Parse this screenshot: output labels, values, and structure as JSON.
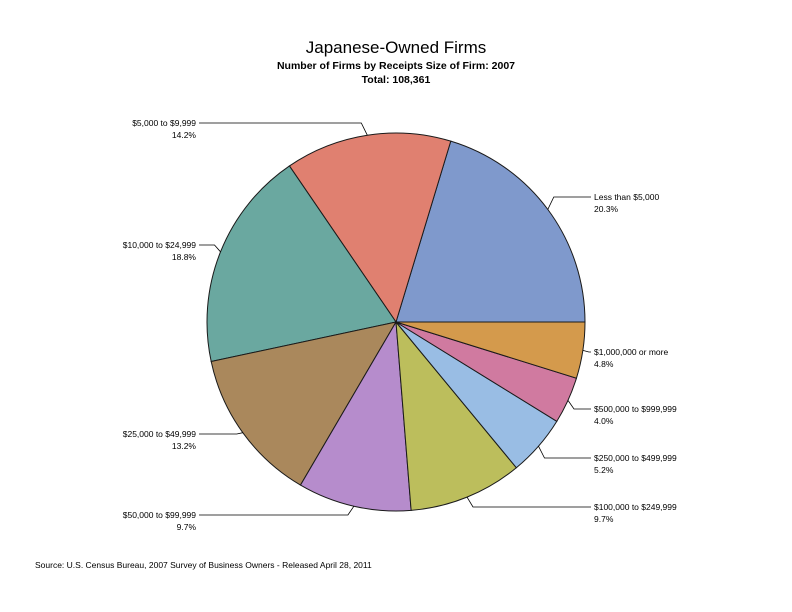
{
  "chart_data": {
    "type": "pie",
    "title": "Japanese-Owned Firms",
    "subtitle": "Number of Firms by Receipts Size of Firm: 2007",
    "total_label": "Total: 108,361",
    "source": "Source: U.S. Census Bureau, 2007 Survey of Business Owners - Released April 28, 2011",
    "slices": [
      {
        "label": "Less than $5,000",
        "pct_text": "20.3%",
        "value": 20.3,
        "color": "#7f99cc"
      },
      {
        "label": "$5,000 to $9,999",
        "pct_text": "14.2%",
        "value": 14.2,
        "color": "#e08070"
      },
      {
        "label": "$10,000 to $24,999",
        "pct_text": "18.8%",
        "value": 18.8,
        "color": "#6aa8a0"
      },
      {
        "label": "$25,000 to $49,999",
        "pct_text": "13.2%",
        "value": 13.2,
        "color": "#aa885c"
      },
      {
        "label": "$50,000 to $99,999",
        "pct_text": "9.7%",
        "value": 9.7,
        "color": "#b68ccc"
      },
      {
        "label": "$100,000 to $249,999",
        "pct_text": "9.7%",
        "value": 9.7,
        "color": "#bcbe5c"
      },
      {
        "label": "$250,000 to $499,999",
        "pct_text": "5.2%",
        "value": 5.2,
        "color": "#99bde4"
      },
      {
        "label": "$500,000 to $999,999",
        "pct_text": "4.0%",
        "value": 4.0,
        "color": "#d07aa0"
      },
      {
        "label": "$1,000,000 or more",
        "pct_text": "4.8%",
        "value": 4.8,
        "color": "#d49a4c"
      }
    ]
  }
}
